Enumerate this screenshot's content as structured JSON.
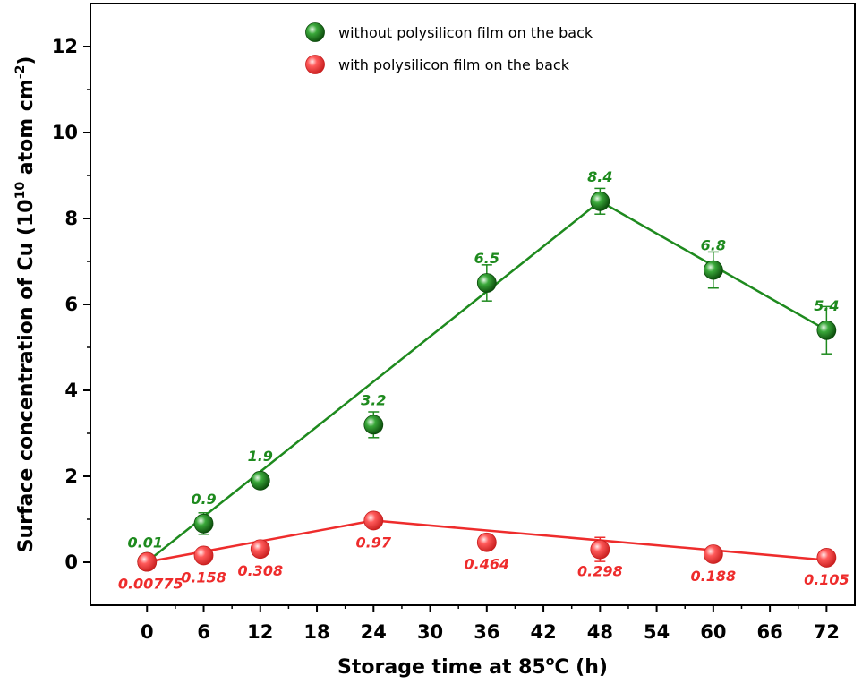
{
  "chart_data": {
    "type": "scatter",
    "xlabel": "Storage time at 85°C (h)",
    "xlabel_parts": {
      "before": "Storage time at 85",
      "sup": "o",
      "after": "C (h)"
    },
    "ylabel": "Surface concentration of Cu (10^10 atom cm^-2)",
    "ylabel_parts": {
      "before": "Surface concentration of Cu (10",
      "sup1": "10",
      "mid": " atom cm",
      "sup2": "-2",
      "after": ")"
    },
    "xlim": [
      -6,
      75
    ],
    "ylim": [
      -1,
      13
    ],
    "x_ticks": [
      0,
      6,
      12,
      18,
      24,
      30,
      36,
      42,
      48,
      54,
      60,
      66,
      72
    ],
    "y_ticks": [
      0,
      2,
      4,
      6,
      8,
      10,
      12
    ],
    "legend_position": "top-center",
    "series": [
      {
        "name": "without polysilicon film on the back",
        "color": "#1e8a1e",
        "x": [
          0,
          6,
          12,
          24,
          36,
          48,
          60,
          72
        ],
        "y": [
          0.01,
          0.9,
          1.9,
          3.2,
          6.5,
          8.4,
          6.8,
          5.4
        ],
        "labels": [
          "0.01",
          "0.9",
          "1.9",
          "3.2",
          "6.5",
          "8.4",
          "6.8",
          "5.4"
        ],
        "error": [
          0.1,
          0.25,
          0.1,
          0.3,
          0.42,
          0.3,
          0.42,
          0.55
        ],
        "fit_line": {
          "x": [
            0,
            48,
            72
          ],
          "y": [
            0.01,
            8.4,
            5.4
          ]
        }
      },
      {
        "name": "with polysilicon film on the back",
        "color": "#ee2c2c",
        "x": [
          0,
          6,
          12,
          24,
          36,
          48,
          60,
          72
        ],
        "y": [
          0.00775,
          0.158,
          0.308,
          0.97,
          0.464,
          0.298,
          0.188,
          0.105
        ],
        "labels": [
          "0.00775",
          "0.158",
          "0.308",
          "0.97",
          "0.464",
          "0.298",
          "0.188",
          "0.105"
        ],
        "error": [
          0.05,
          0.08,
          0.08,
          0.08,
          0.08,
          0.28,
          0.08,
          0.08
        ],
        "fit_line": {
          "x": [
            0,
            24,
            72
          ],
          "y": [
            0.00775,
            0.97,
            0.05
          ]
        }
      }
    ]
  }
}
